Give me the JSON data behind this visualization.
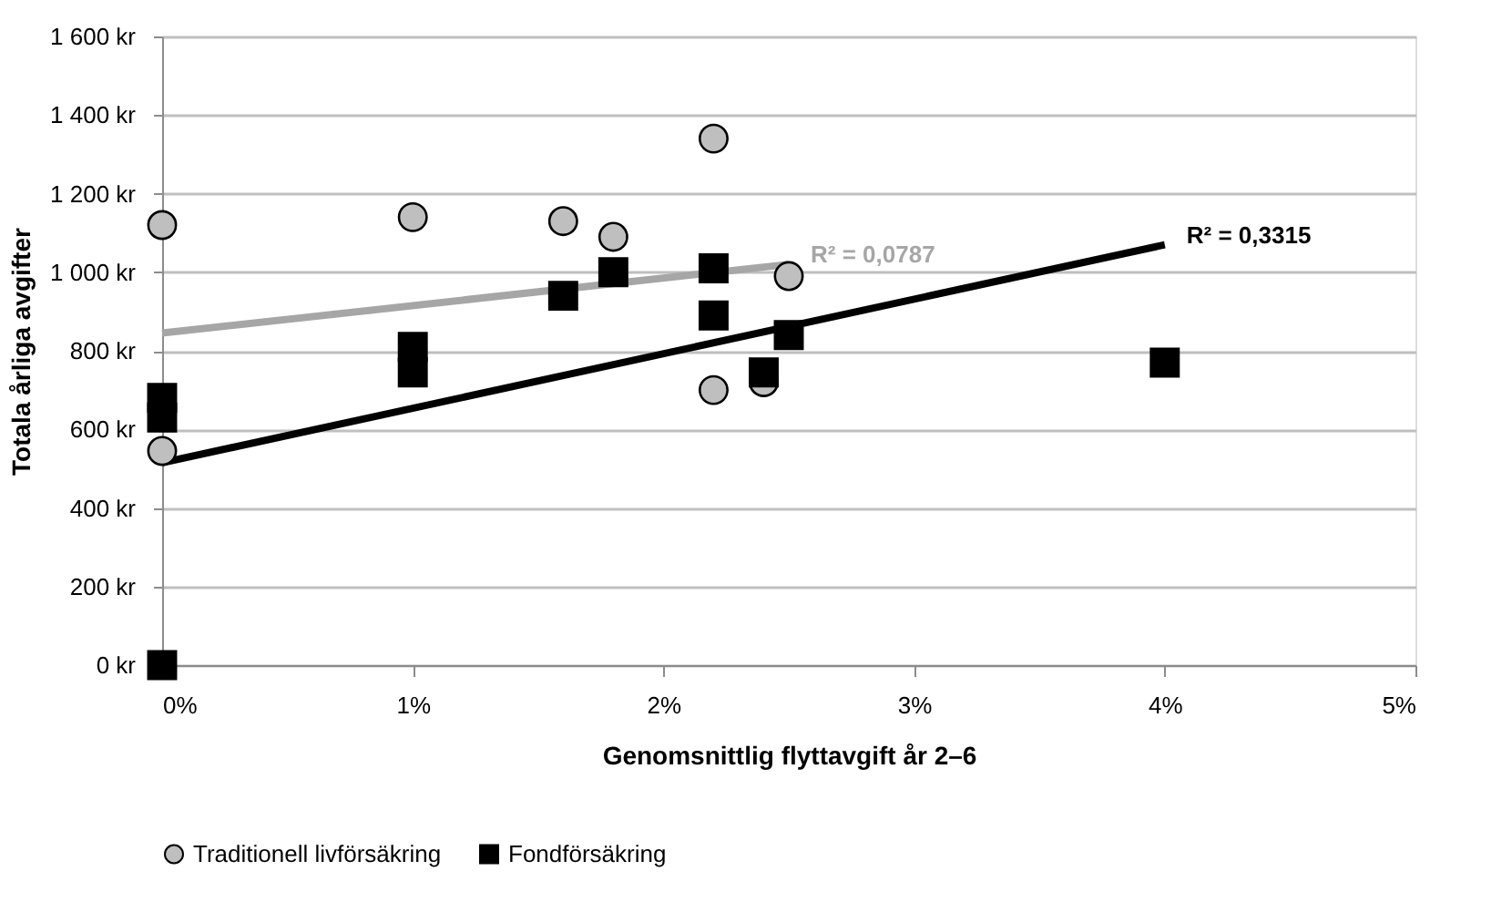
{
  "chart_data": {
    "type": "scatter",
    "xlabel": "Genomsnittlig flyttavgift år 2–6",
    "ylabel": "Totala årliga avgifter",
    "series": [
      {
        "name": "Traditionell livförsäkring",
        "color": "#bfbfbf",
        "marker": "circle",
        "x": [
          0,
          0,
          1,
          1.6,
          1.8,
          2.2,
          2.2,
          2.4,
          2.5
        ],
        "values": [
          1120,
          545,
          1140,
          1130,
          1090,
          1340,
          700,
          720,
          990
        ]
      },
      {
        "name": "Fondförsäkring",
        "color": "#000000",
        "marker": "square",
        "x": [
          0,
          0,
          0,
          1,
          1,
          1.6,
          1.8,
          2.2,
          2.2,
          2.4,
          2.5,
          4
        ],
        "values": [
          0,
          680,
          630,
          810,
          745,
          940,
          1000,
          1010,
          890,
          745,
          840,
          770
        ]
      },
      {
        "type": "line",
        "color": "#a6a6a6",
        "x": [
          0,
          2.5
        ],
        "values": [
          845,
          1020
        ]
      },
      {
        "type": "line",
        "color": "#000000",
        "x": [
          0,
          4
        ],
        "values": [
          515,
          1070
        ]
      }
    ],
    "annotations": [
      "R² = 0,0787",
      "R² = 0,3315"
    ],
    "xlim": [
      0,
      5
    ],
    "xticks": [
      {
        "value": 0,
        "label": "0%"
      },
      {
        "value": 1,
        "label": "1%"
      },
      {
        "value": 2,
        "label": "2%"
      },
      {
        "value": 3,
        "label": "3%"
      },
      {
        "value": 4,
        "label": "4%"
      },
      {
        "value": 5,
        "label": "5%"
      }
    ],
    "ylim": [
      0,
      1600
    ],
    "yticks": [
      {
        "value": 0,
        "label": "0 kr"
      },
      {
        "value": 200,
        "label": "200 kr"
      },
      {
        "value": 400,
        "label": "400 kr"
      },
      {
        "value": 600,
        "label": "600 kr"
      },
      {
        "value": 800,
        "label": "800 kr"
      },
      {
        "value": 1000,
        "label": "1 000 kr"
      },
      {
        "value": 1200,
        "label": "1 200 kr"
      },
      {
        "value": 1400,
        "label": "1 400 kr"
      },
      {
        "value": 1600,
        "label": "1 600 kr"
      }
    ],
    "grid": "y",
    "legend": "bottom"
  }
}
